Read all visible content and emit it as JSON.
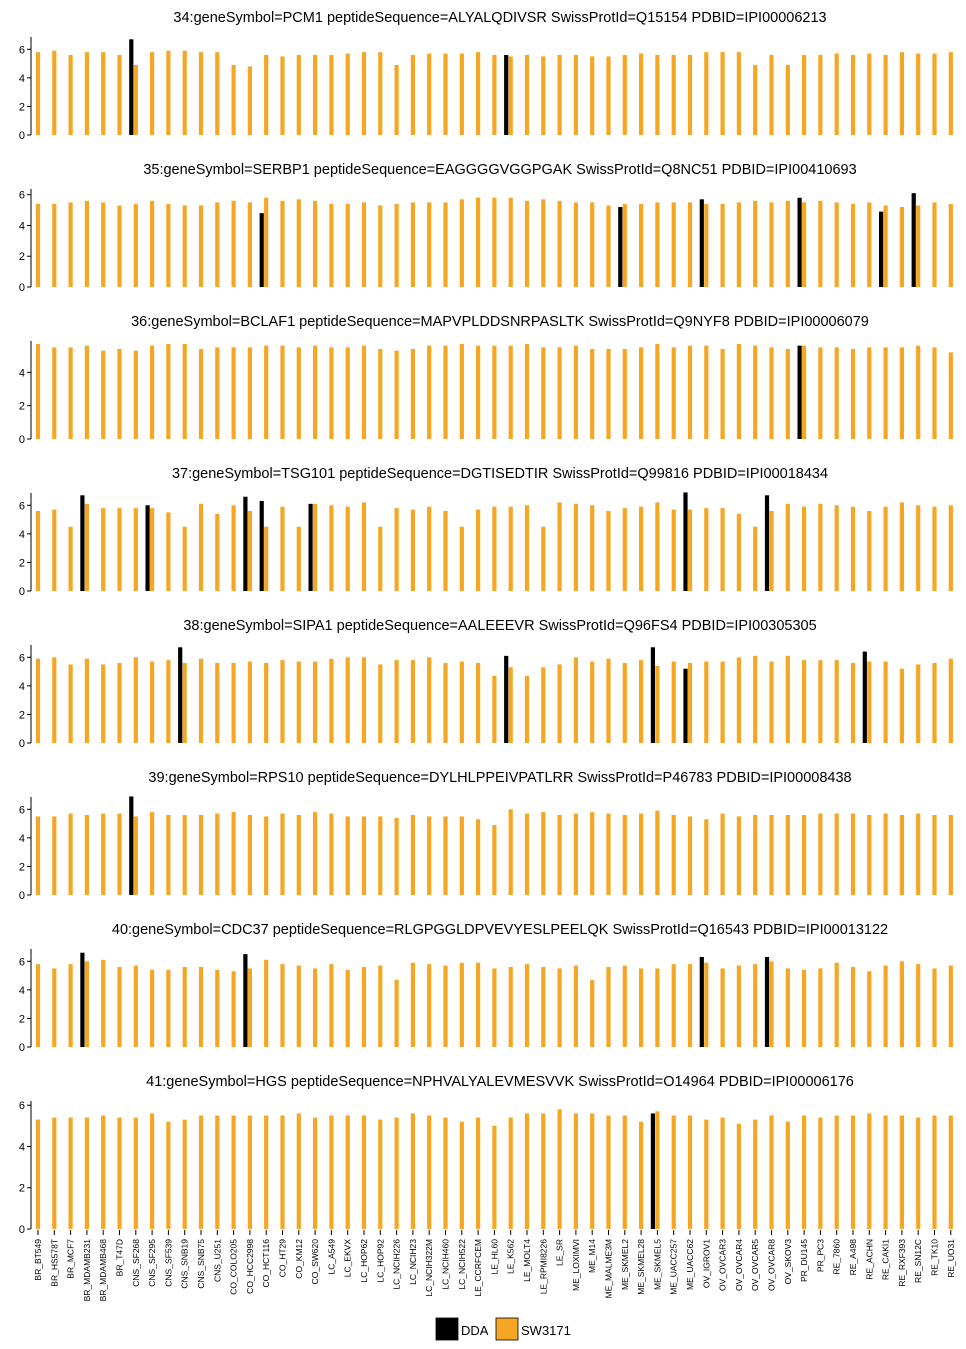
{
  "legend": {
    "entries": [
      {
        "name": "DDA",
        "color": "#000000"
      },
      {
        "name": "SW3171",
        "color": "#F5A623"
      }
    ],
    "placement": "bottom-center"
  },
  "colors": {
    "dda": "#000000",
    "sw": "#F5A623"
  },
  "chart_data": {
    "type": "bar",
    "categories": [
      "BR_BT549",
      "BR_HS578T",
      "BR_MCF7",
      "BR_MDAMB231",
      "BR_MDAMB468",
      "BR_T47D",
      "CNS_SF268",
      "CNS_SF295",
      "CNS_SF539",
      "CNS_SNB19",
      "CNS_SNB75",
      "CNS_U251",
      "CO_COLO205",
      "CO_HCC2998",
      "CO_HCT116",
      "CO_HT29",
      "CO_KM12",
      "CO_SW620",
      "LC_A549",
      "LC_EKVX",
      "LC_HOP62",
      "LC_HOP92",
      "LC_NCIH226",
      "LC_NCIH23",
      "LC_NCIH322M",
      "LC_NCIH460",
      "LC_NCIH522",
      "LE_CCRFCEM",
      "LE_HL60",
      "LE_K562",
      "LE_MOLT4",
      "LE_RPMI8226",
      "LE_SR",
      "ME_LOXIMVI",
      "ME_M14",
      "ME_MALME3M",
      "ME_SKMEL2",
      "ME_SKMEL28",
      "ME_SKMEL5",
      "ME_UACC257",
      "ME_UACC62",
      "OV_IGROV1",
      "OV_OVCAR3",
      "OV_OVCAR4",
      "OV_OVCAR5",
      "OV_OVCAR8",
      "OV_SKOV3",
      "PR_DU145",
      "PR_PC3",
      "RE_7860",
      "RE_A498",
      "RE_ACHN",
      "RE_CAKI1",
      "RE_RXF393",
      "RE_SN12C",
      "RE_TK10",
      "RE_UO31"
    ],
    "series_names": [
      "DDA",
      "SW3171"
    ],
    "panels": [
      {
        "title": "34:geneSymbol=PCM1  peptideSequence=ALYALQDIVSR  SwissProtId=Q15154 PDBID=IPI00006213",
        "yticks": [
          "0",
          "2",
          "4",
          "6"
        ],
        "ylim": [
          0,
          7
        ],
        "dda": [
          {
            "index": 6,
            "value": 6.7
          },
          {
            "index": 29,
            "value": 5.6
          }
        ],
        "sw": [
          5.8,
          5.9,
          5.6,
          5.8,
          5.8,
          5.6,
          4.9,
          5.8,
          5.9,
          5.9,
          5.8,
          5.8,
          4.9,
          4.8,
          5.6,
          5.5,
          5.6,
          5.6,
          5.6,
          5.7,
          5.8,
          5.8,
          4.9,
          5.6,
          5.7,
          5.7,
          5.7,
          5.8,
          5.6,
          5.5,
          5.6,
          5.5,
          5.6,
          5.6,
          5.5,
          5.5,
          5.6,
          5.7,
          5.6,
          5.6,
          5.6,
          5.8,
          5.8,
          5.8,
          4.9,
          5.6,
          4.9,
          5.6,
          5.6,
          5.7,
          5.6,
          5.7,
          5.6,
          5.8,
          5.7,
          5.7,
          5.8
        ]
      },
      {
        "title": "35:geneSymbol=SERBP1  peptideSequence=EAGGGGVGGPGAK  SwissProtId=Q8NC51 PDBID=IPI00410693",
        "yticks": [
          "0",
          "2",
          "4",
          "6"
        ],
        "ylim": [
          0,
          6.5
        ],
        "dda": [
          {
            "index": 14,
            "value": 4.8
          },
          {
            "index": 36,
            "value": 5.2
          },
          {
            "index": 41,
            "value": 5.7
          },
          {
            "index": 47,
            "value": 5.8
          },
          {
            "index": 52,
            "value": 4.9
          },
          {
            "index": 54,
            "value": 6.1
          }
        ],
        "sw": [
          5.4,
          5.4,
          5.5,
          5.6,
          5.5,
          5.3,
          5.4,
          5.6,
          5.4,
          5.3,
          5.3,
          5.5,
          5.6,
          5.5,
          5.8,
          5.6,
          5.7,
          5.6,
          5.4,
          5.4,
          5.5,
          5.3,
          5.4,
          5.5,
          5.5,
          5.5,
          5.7,
          5.8,
          5.8,
          5.8,
          5.6,
          5.7,
          5.6,
          5.5,
          5.5,
          5.3,
          5.4,
          5.4,
          5.5,
          5.5,
          5.5,
          5.4,
          5.4,
          5.5,
          5.6,
          5.5,
          5.6,
          5.5,
          5.6,
          5.5,
          5.4,
          5.5,
          5.3,
          5.2,
          5.3,
          5.5,
          5.4
        ]
      },
      {
        "title": "36:geneSymbol=BCLAF1  peptideSequence=MAPVPLDDSNRPASLTK  SwissProtId=Q9NYF8 PDBID=IPI00006079",
        "yticks": [
          "0",
          "2",
          "4"
        ],
        "ylim": [
          0,
          6
        ],
        "dda": [
          {
            "index": 47,
            "value": 5.6
          }
        ],
        "sw": [
          5.7,
          5.5,
          5.5,
          5.6,
          5.3,
          5.4,
          5.3,
          5.6,
          5.7,
          5.7,
          5.4,
          5.5,
          5.5,
          5.5,
          5.6,
          5.6,
          5.5,
          5.6,
          5.5,
          5.5,
          5.6,
          5.4,
          5.3,
          5.4,
          5.6,
          5.6,
          5.7,
          5.6,
          5.6,
          5.6,
          5.7,
          5.5,
          5.5,
          5.6,
          5.4,
          5.4,
          5.4,
          5.5,
          5.7,
          5.5,
          5.6,
          5.6,
          5.4,
          5.7,
          5.6,
          5.5,
          5.4,
          5.6,
          5.5,
          5.5,
          5.4,
          5.5,
          5.5,
          5.5,
          5.6,
          5.5,
          5.2
        ]
      },
      {
        "title": "37:geneSymbol=TSG101  peptideSequence=DGTISEDTIR  SwissProtId=Q99816 PDBID=IPI00018434",
        "yticks": [
          "0",
          "2",
          "4",
          "6"
        ],
        "ylim": [
          0,
          7
        ],
        "dda": [
          {
            "index": 3,
            "value": 6.7
          },
          {
            "index": 7,
            "value": 6.0
          },
          {
            "index": 13,
            "value": 6.6
          },
          {
            "index": 14,
            "value": 6.3
          },
          {
            "index": 17,
            "value": 6.1
          },
          {
            "index": 40,
            "value": 6.9
          },
          {
            "index": 45,
            "value": 6.7
          }
        ],
        "sw": [
          5.6,
          5.7,
          4.5,
          6.1,
          5.8,
          5.8,
          5.8,
          5.8,
          5.5,
          4.5,
          6.1,
          5.4,
          6.0,
          5.6,
          4.5,
          5.9,
          4.5,
          6.1,
          6.0,
          5.9,
          6.2,
          4.5,
          5.8,
          5.7,
          5.9,
          5.6,
          4.5,
          5.7,
          5.9,
          5.9,
          6.0,
          4.5,
          6.2,
          6.1,
          6.0,
          5.6,
          5.8,
          5.9,
          6.2,
          5.7,
          5.7,
          5.8,
          5.8,
          5.4,
          4.5,
          5.6,
          6.1,
          5.9,
          6.1,
          6.0,
          5.9,
          5.6,
          5.9,
          6.2,
          6.0,
          5.9,
          6.0
        ]
      },
      {
        "title": "38:geneSymbol=SIPA1  peptideSequence=AALEEEVR  SwissProtId=Q96FS4 PDBID=IPI00305305",
        "yticks": [
          "0",
          "2",
          "4",
          "6"
        ],
        "ylim": [
          0,
          7
        ],
        "dda": [
          {
            "index": 9,
            "value": 6.7
          },
          {
            "index": 29,
            "value": 6.1
          },
          {
            "index": 38,
            "value": 6.7
          },
          {
            "index": 40,
            "value": 5.2
          },
          {
            "index": 51,
            "value": 6.4
          }
        ],
        "sw": [
          5.9,
          6.0,
          5.5,
          5.9,
          5.5,
          5.6,
          6.0,
          5.7,
          5.8,
          5.6,
          5.9,
          5.6,
          5.6,
          5.7,
          5.6,
          5.8,
          5.7,
          5.7,
          5.9,
          6.0,
          6.0,
          5.5,
          5.8,
          5.8,
          6.0,
          5.6,
          5.7,
          5.6,
          4.7,
          5.3,
          4.7,
          5.3,
          5.5,
          6.0,
          5.7,
          5.9,
          5.6,
          5.8,
          5.4,
          5.7,
          5.6,
          5.7,
          5.7,
          6.0,
          6.1,
          5.7,
          6.1,
          5.8,
          5.8,
          5.8,
          5.6,
          5.7,
          5.7,
          5.2,
          5.5,
          5.6,
          5.9
        ]
      },
      {
        "title": "39:geneSymbol=RPS10  peptideSequence=DYLHLPPEIVPATLRR  SwissProtId=P46783 PDBID=IPI00008438",
        "yticks": [
          "0",
          "2",
          "4",
          "6"
        ],
        "ylim": [
          0,
          7
        ],
        "dda": [
          {
            "index": 6,
            "value": 6.9
          }
        ],
        "sw": [
          5.5,
          5.5,
          5.7,
          5.6,
          5.7,
          5.7,
          5.5,
          5.8,
          5.6,
          5.6,
          5.6,
          5.7,
          5.8,
          5.6,
          5.5,
          5.7,
          5.6,
          5.8,
          5.7,
          5.5,
          5.5,
          5.5,
          5.4,
          5.6,
          5.5,
          5.5,
          5.5,
          5.3,
          4.9,
          6.0,
          5.7,
          5.8,
          5.6,
          5.7,
          5.8,
          5.7,
          5.6,
          5.7,
          5.9,
          5.6,
          5.5,
          5.3,
          5.7,
          5.5,
          5.6,
          5.6,
          5.6,
          5.6,
          5.7,
          5.7,
          5.7,
          5.6,
          5.7,
          5.6,
          5.7,
          5.6,
          5.6
        ]
      },
      {
        "title": "40:geneSymbol=CDC37  peptideSequence=RLGPGGLDPVEVYESLPEELQK  SwissProtId=Q16543 PDBID=IPI00013122",
        "yticks": [
          "0",
          "2",
          "4",
          "6"
        ],
        "ylim": [
          0,
          7
        ],
        "dda": [
          {
            "index": 3,
            "value": 6.6
          },
          {
            "index": 13,
            "value": 6.5
          },
          {
            "index": 41,
            "value": 6.3
          },
          {
            "index": 45,
            "value": 6.3
          }
        ],
        "sw": [
          5.8,
          5.5,
          5.8,
          6.0,
          6.1,
          5.6,
          5.7,
          5.4,
          5.4,
          5.6,
          5.6,
          5.4,
          5.3,
          5.5,
          6.1,
          5.8,
          5.7,
          5.5,
          5.8,
          5.4,
          5.6,
          5.7,
          4.7,
          5.9,
          5.8,
          5.7,
          5.9,
          5.9,
          5.5,
          5.6,
          5.8,
          5.6,
          5.5,
          5.7,
          4.7,
          5.6,
          5.7,
          5.5,
          5.5,
          5.8,
          5.8,
          5.9,
          5.5,
          5.7,
          5.8,
          6.0,
          5.5,
          5.4,
          5.5,
          5.9,
          5.6,
          5.3,
          5.7,
          6.0,
          5.8,
          5.5,
          5.7
        ]
      },
      {
        "title": "41:geneSymbol=HGS  peptideSequence=NPHVALYALEVMESVVK  SwissProtId=O14964 PDBID=IPI00006176",
        "yticks": [
          "0",
          "2",
          "4",
          "6"
        ],
        "ylim": [
          0,
          6.3
        ],
        "dda": [
          {
            "index": 38,
            "value": 5.6
          }
        ],
        "sw": [
          5.3,
          5.4,
          5.4,
          5.4,
          5.5,
          5.4,
          5.4,
          5.6,
          5.2,
          5.3,
          5.5,
          5.5,
          5.5,
          5.5,
          5.5,
          5.5,
          5.6,
          5.4,
          5.5,
          5.5,
          5.5,
          5.3,
          5.4,
          5.6,
          5.5,
          5.4,
          5.2,
          5.4,
          5.0,
          5.4,
          5.6,
          5.6,
          5.8,
          5.6,
          5.6,
          5.5,
          5.5,
          5.2,
          5.7,
          5.5,
          5.5,
          5.3,
          5.4,
          5.1,
          5.3,
          5.5,
          5.2,
          5.5,
          5.4,
          5.5,
          5.5,
          5.6,
          5.5,
          5.5,
          5.4,
          5.5,
          5.5
        ]
      }
    ]
  }
}
